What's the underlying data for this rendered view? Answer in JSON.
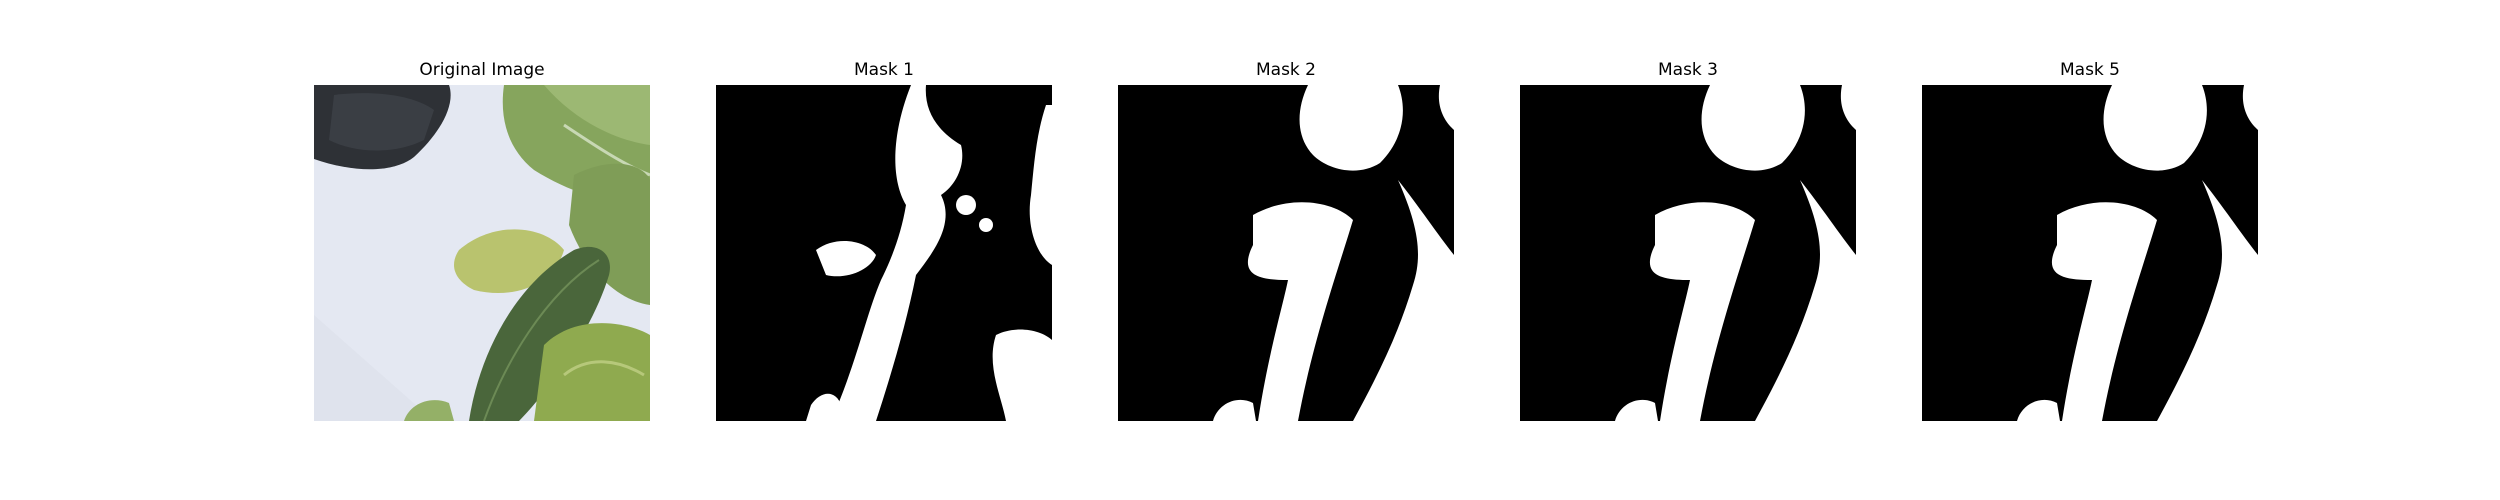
{
  "panels": [
    {
      "title": "Original Image"
    },
    {
      "title": "Mask 1"
    },
    {
      "title": "Mask 2"
    },
    {
      "title": "Mask 3"
    },
    {
      "title": "Mask 5"
    }
  ],
  "colors": {
    "background": "#ffffff",
    "mask_background": "#000000",
    "mask_foreground": "#ffffff",
    "photo_background": "#e3e7f1",
    "leaf_light": "#a7be7d",
    "leaf_mid": "#7e9b58",
    "leaf_dark": "#486439",
    "container_dark": "#2d3035"
  }
}
